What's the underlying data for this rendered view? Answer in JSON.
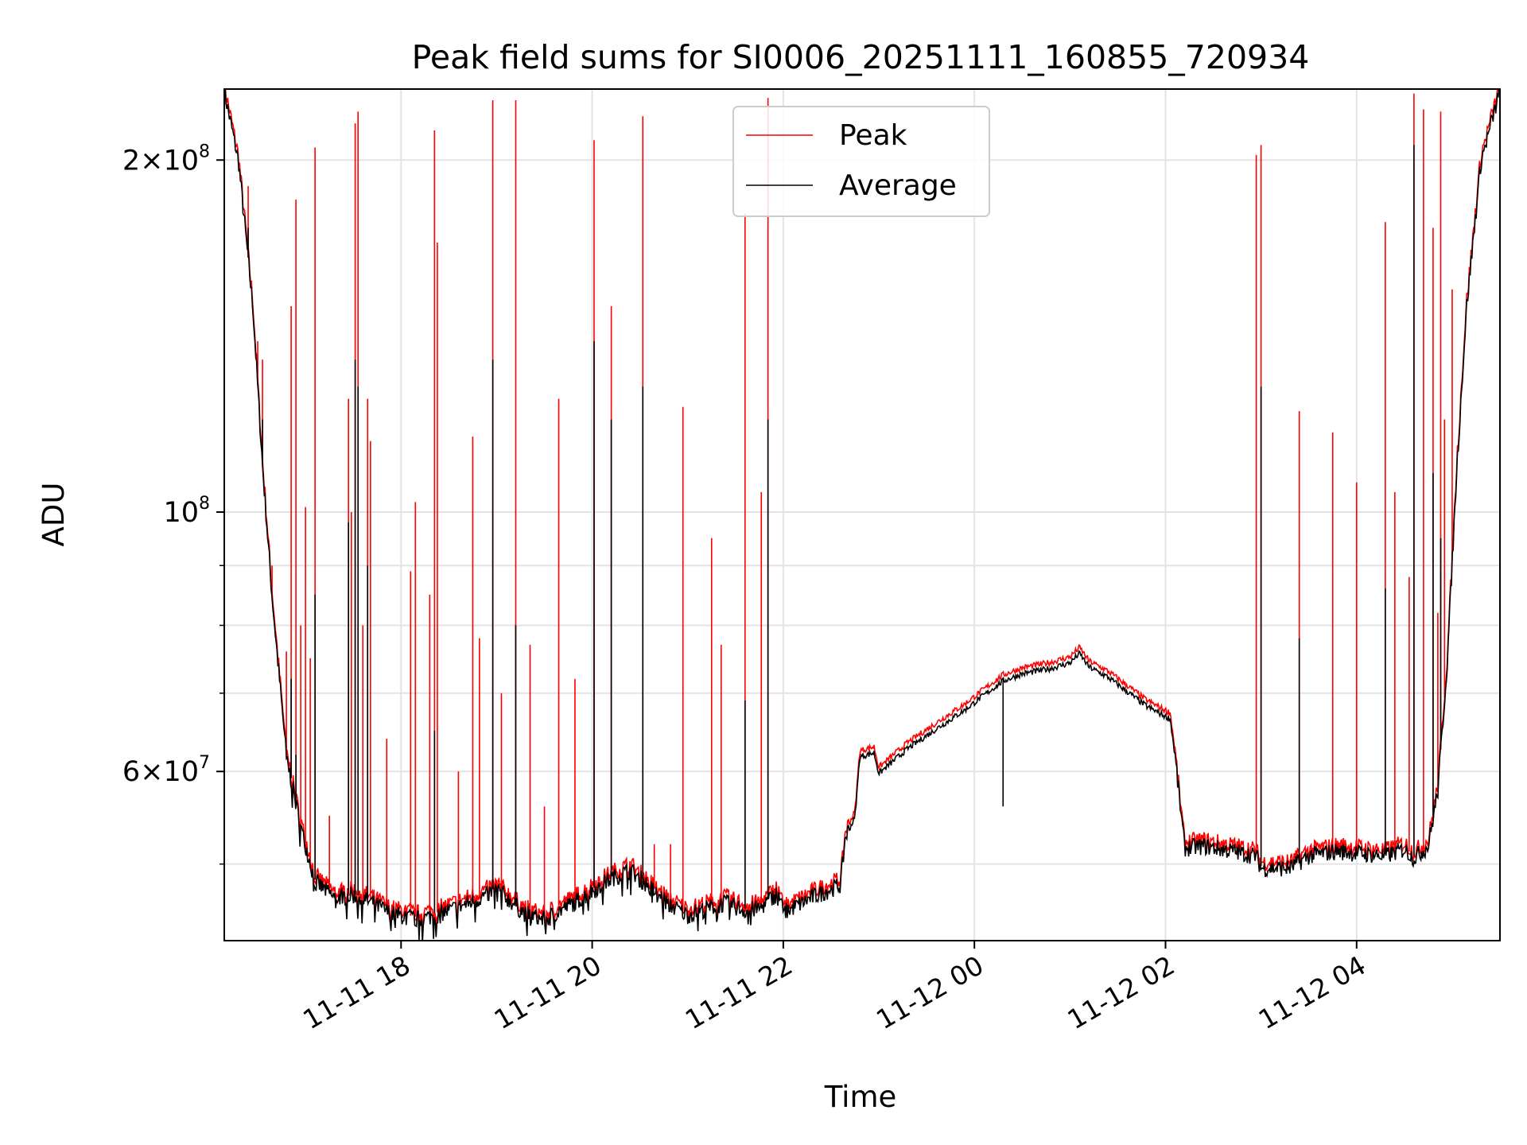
{
  "chart_data": {
    "type": "line",
    "title": "Peak field sums for SI0006_20251111_160855_720934",
    "xlabel": "Time",
    "ylabel": "ADU",
    "yscale": "log",
    "ylim": [
      43000000,
      230000000
    ],
    "xlim_hours": [
      16.15,
      29.5
    ],
    "grid": true,
    "legend_position": "top-center",
    "x_ticks": [
      {
        "hour": 18,
        "label": "11-11 18"
      },
      {
        "hour": 20,
        "label": "11-11 20"
      },
      {
        "hour": 22,
        "label": "11-11 22"
      },
      {
        "hour": 24,
        "label": "11-12 00"
      },
      {
        "hour": 26,
        "label": "11-12 02"
      },
      {
        "hour": 28,
        "label": "11-12 04"
      }
    ],
    "y_major_ticks": [
      {
        "value": 200000000,
        "base": "2×10",
        "exp": "8"
      },
      {
        "value": 100000000,
        "base": "10",
        "exp": "8"
      },
      {
        "value": 60000000,
        "base": "6×10",
        "exp": "7"
      }
    ],
    "y_minor_grid": [
      50000000,
      70000000,
      80000000,
      90000000
    ],
    "series": [
      {
        "name": "Peak",
        "color": "#ff0000"
      },
      {
        "name": "Average",
        "color": "#000000"
      }
    ],
    "baseline": [
      [
        16.15,
        230000000
      ],
      [
        16.3,
        200000000
      ],
      [
        16.45,
        150000000
      ],
      [
        16.55,
        110000000
      ],
      [
        16.65,
        85000000
      ],
      [
        16.8,
        62000000
      ],
      [
        16.95,
        54000000
      ],
      [
        17.1,
        48500000
      ],
      [
        17.3,
        47000000
      ],
      [
        17.5,
        47200000
      ],
      [
        17.7,
        46500000
      ],
      [
        17.9,
        45500000
      ],
      [
        18.2,
        45000000
      ],
      [
        18.5,
        45800000
      ],
      [
        18.8,
        46800000
      ],
      [
        19.0,
        47800000
      ],
      [
        19.3,
        45500000
      ],
      [
        19.5,
        45000000
      ],
      [
        19.7,
        46000000
      ],
      [
        19.9,
        47000000
      ],
      [
        20.0,
        47600000
      ],
      [
        20.2,
        48800000
      ],
      [
        20.4,
        49600000
      ],
      [
        20.6,
        48000000
      ],
      [
        20.8,
        46400000
      ],
      [
        21.0,
        45400000
      ],
      [
        21.2,
        46000000
      ],
      [
        21.4,
        46500000
      ],
      [
        21.6,
        45800000
      ],
      [
        21.75,
        46000000
      ],
      [
        21.95,
        47500000
      ],
      [
        22.0,
        45600000
      ],
      [
        22.3,
        47000000
      ],
      [
        22.6,
        48200000
      ],
      [
        22.65,
        53000000
      ],
      [
        22.75,
        55000000
      ],
      [
        22.8,
        62000000
      ],
      [
        22.95,
        62500000
      ],
      [
        23.0,
        60000000
      ],
      [
        23.3,
        63000000
      ],
      [
        23.6,
        65500000
      ],
      [
        23.9,
        68000000
      ],
      [
        24.1,
        70000000
      ],
      [
        24.3,
        72000000
      ],
      [
        24.5,
        73000000
      ],
      [
        24.8,
        73800000
      ],
      [
        25.0,
        74600000
      ],
      [
        25.1,
        76000000
      ],
      [
        25.2,
        74000000
      ],
      [
        25.4,
        72500000
      ],
      [
        25.6,
        70500000
      ],
      [
        25.8,
        68500000
      ],
      [
        26.05,
        66800000
      ],
      [
        26.1,
        62000000
      ],
      [
        26.2,
        51800000
      ],
      [
        26.4,
        52000000
      ],
      [
        26.7,
        51500000
      ],
      [
        26.95,
        51000000
      ],
      [
        27.0,
        49800000
      ],
      [
        27.3,
        49800000
      ],
      [
        27.5,
        51000000
      ],
      [
        27.8,
        51500000
      ],
      [
        28.1,
        51200000
      ],
      [
        28.3,
        51000000
      ],
      [
        28.5,
        51700000
      ],
      [
        28.6,
        50800000
      ],
      [
        28.75,
        52000000
      ],
      [
        28.85,
        58000000
      ],
      [
        28.95,
        75000000
      ],
      [
        29.05,
        110000000
      ],
      [
        29.15,
        150000000
      ],
      [
        29.3,
        200000000
      ],
      [
        29.5,
        230000000
      ]
    ],
    "peak_spikes": [
      [
        16.4,
        190000000
      ],
      [
        16.5,
        140000000
      ],
      [
        16.55,
        135000000
      ],
      [
        16.65,
        90000000
      ],
      [
        16.8,
        76000000
      ],
      [
        16.85,
        150000000
      ],
      [
        16.9,
        185000000
      ],
      [
        16.95,
        80000000
      ],
      [
        17.0,
        101000000
      ],
      [
        17.05,
        75000000
      ],
      [
        17.1,
        205000000
      ],
      [
        17.25,
        55000000
      ],
      [
        17.45,
        125000000
      ],
      [
        17.48,
        100000000
      ],
      [
        17.52,
        215000000
      ],
      [
        17.55,
        220000000
      ],
      [
        17.6,
        80000000
      ],
      [
        17.65,
        125000000
      ],
      [
        17.68,
        115000000
      ],
      [
        17.85,
        64000000
      ],
      [
        18.1,
        89000000
      ],
      [
        18.15,
        102000000
      ],
      [
        18.3,
        85000000
      ],
      [
        18.35,
        212000000
      ],
      [
        18.38,
        170000000
      ],
      [
        18.6,
        60000000
      ],
      [
        18.75,
        116000000
      ],
      [
        18.82,
        78000000
      ],
      [
        18.96,
        225000000
      ],
      [
        19.05,
        70000000
      ],
      [
        19.2,
        225000000
      ],
      [
        19.35,
        77000000
      ],
      [
        19.5,
        56000000
      ],
      [
        19.65,
        125000000
      ],
      [
        19.82,
        72000000
      ],
      [
        20.02,
        208000000
      ],
      [
        20.2,
        150000000
      ],
      [
        20.53,
        218000000
      ],
      [
        20.65,
        52000000
      ],
      [
        20.82,
        52000000
      ],
      [
        20.95,
        123000000
      ],
      [
        21.25,
        95000000
      ],
      [
        21.35,
        77000000
      ],
      [
        21.6,
        180000000
      ],
      [
        21.77,
        104000000
      ],
      [
        21.84,
        226000000
      ],
      [
        26.95,
        202000000
      ],
      [
        27.0,
        206000000
      ],
      [
        27.4,
        122000000
      ],
      [
        27.75,
        117000000
      ],
      [
        28.0,
        106000000
      ],
      [
        28.3,
        177000000
      ],
      [
        28.4,
        104000000
      ],
      [
        28.55,
        88000000
      ],
      [
        28.6,
        228000000
      ],
      [
        28.7,
        221000000
      ],
      [
        28.8,
        175000000
      ],
      [
        28.85,
        82000000
      ],
      [
        28.88,
        220000000
      ],
      [
        28.92,
        120000000
      ],
      [
        29.0,
        155000000
      ]
    ],
    "avg_spikes": [
      [
        16.4,
        175000000
      ],
      [
        16.55,
        120000000
      ],
      [
        16.85,
        72000000
      ],
      [
        16.9,
        62000000
      ],
      [
        17.1,
        85000000
      ],
      [
        17.45,
        98000000
      ],
      [
        17.52,
        135000000
      ],
      [
        17.55,
        128000000
      ],
      [
        17.65,
        90000000
      ],
      [
        18.35,
        65000000
      ],
      [
        18.96,
        135000000
      ],
      [
        19.2,
        80000000
      ],
      [
        20.02,
        140000000
      ],
      [
        20.2,
        120000000
      ],
      [
        20.53,
        128000000
      ],
      [
        21.6,
        69000000
      ],
      [
        21.84,
        120000000
      ],
      [
        24.3,
        56000000
      ],
      [
        27.0,
        128000000
      ],
      [
        27.4,
        78000000
      ],
      [
        28.3,
        86000000
      ],
      [
        28.6,
        206000000
      ],
      [
        28.8,
        108000000
      ],
      [
        28.88,
        95000000
      ]
    ]
  }
}
